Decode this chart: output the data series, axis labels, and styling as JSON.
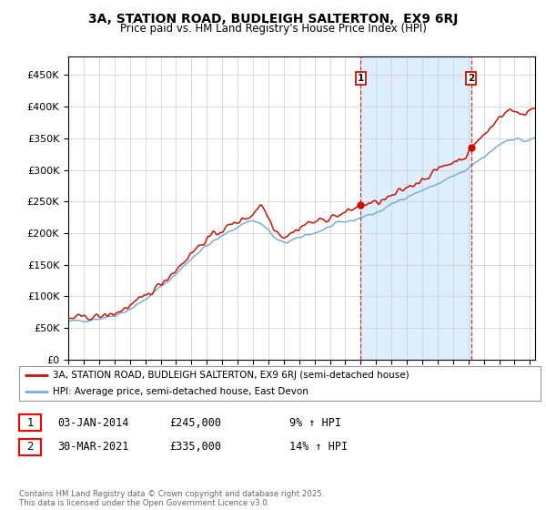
{
  "title_line1": "3A, STATION ROAD, BUDLEIGH SALTERTON,  EX9 6RJ",
  "title_line2": "Price paid vs. HM Land Registry's House Price Index (HPI)",
  "background_color": "#ffffff",
  "plot_bg_color": "#ffffff",
  "grid_color": "#cccccc",
  "hpi_color": "#7aadd4",
  "price_color": "#cc1100",
  "shade_color": "#ddeeff",
  "sale1_date_year": 2014,
  "sale1_date_month": 1,
  "sale1_price": 245000,
  "sale1_label": "1",
  "sale2_date_year": 2021,
  "sale2_date_month": 3,
  "sale2_price": 335000,
  "sale2_label": "2",
  "legend_line1": "3A, STATION ROAD, BUDLEIGH SALTERTON, EX9 6RJ (semi-detached house)",
  "legend_line2": "HPI: Average price, semi-detached house, East Devon",
  "ann1_col1": "03-JAN-2014",
  "ann1_col2": "£245,000",
  "ann1_col3": "9% ↑ HPI",
  "ann2_col1": "30-MAR-2021",
  "ann2_col2": "£335,000",
  "ann2_col3": "14% ↑ HPI",
  "footer": "Contains HM Land Registry data © Crown copyright and database right 2025.\nThis data is licensed under the Open Government Licence v3.0.",
  "ylim_max": 480000,
  "yticks": [
    0,
    50000,
    100000,
    150000,
    200000,
    250000,
    300000,
    350000,
    400000,
    450000
  ],
  "start_year": 1995,
  "end_year": 2025
}
